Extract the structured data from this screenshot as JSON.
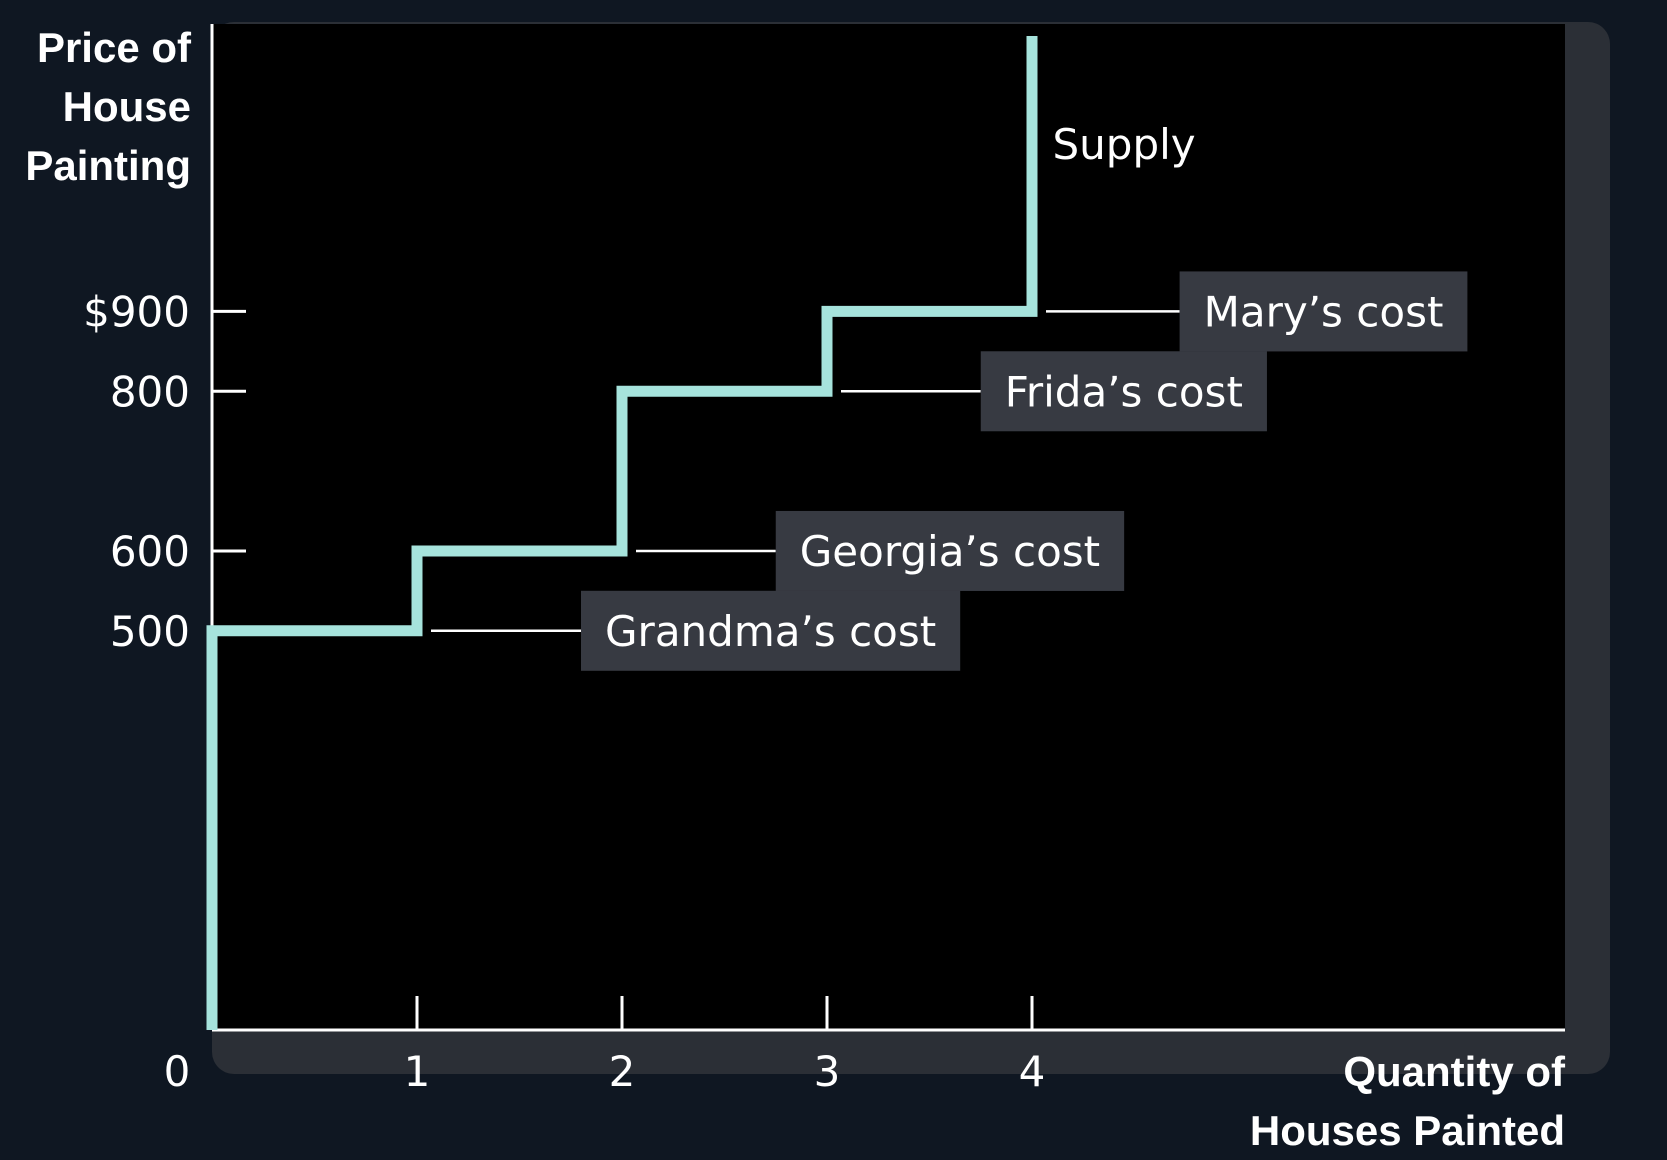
{
  "chart_data": {
    "type": "line",
    "subtype": "step",
    "title": "",
    "ylabel_lines": [
      "Price of",
      "House",
      "Painting"
    ],
    "xlabel_lines": [
      "Quantity of",
      "Houses Painted"
    ],
    "origin_label": "0",
    "xlim": [
      0,
      6.6
    ],
    "ylim": [
      0,
      1260
    ],
    "x_ticks": [
      {
        "value": 1,
        "label": "1"
      },
      {
        "value": 2,
        "label": "2"
      },
      {
        "value": 3,
        "label": "3"
      },
      {
        "value": 4,
        "label": "4"
      }
    ],
    "y_ticks": [
      {
        "value": 500,
        "label": "500"
      },
      {
        "value": 600,
        "label": "600"
      },
      {
        "value": 800,
        "label": "800"
      },
      {
        "value": 900,
        "label": "$900"
      }
    ],
    "series": [
      {
        "name": "Supply",
        "color": "#a6e3dc",
        "points": [
          {
            "x": 0,
            "y": 0
          },
          {
            "x": 0,
            "y": 500
          },
          {
            "x": 1,
            "y": 500
          },
          {
            "x": 1,
            "y": 600
          },
          {
            "x": 2,
            "y": 600
          },
          {
            "x": 2,
            "y": 800
          },
          {
            "x": 3,
            "y": 800
          },
          {
            "x": 3,
            "y": 900
          },
          {
            "x": 4,
            "y": 900
          },
          {
            "x": 4,
            "y": 1245
          }
        ]
      }
    ],
    "series_label": {
      "text": "Supply",
      "x": 4.1,
      "y": 1110
    },
    "annotations": [
      {
        "text": "Grandma’s cost",
        "x": 1,
        "y": 500,
        "label_x": 1.8
      },
      {
        "text": "Georgia’s cost",
        "x": 2,
        "y": 600,
        "label_x": 2.75
      },
      {
        "text": "Frida’s cost",
        "x": 3,
        "y": 800,
        "label_x": 3.75
      },
      {
        "text": "Mary’s cost",
        "x": 4,
        "y": 900,
        "label_x": 4.72
      }
    ],
    "colors": {
      "background": "#0f1722",
      "plot_area": "#000000",
      "frame_shadow": "#2b2f36",
      "axis": "#ffffff",
      "label_box": "#373a42"
    }
  }
}
